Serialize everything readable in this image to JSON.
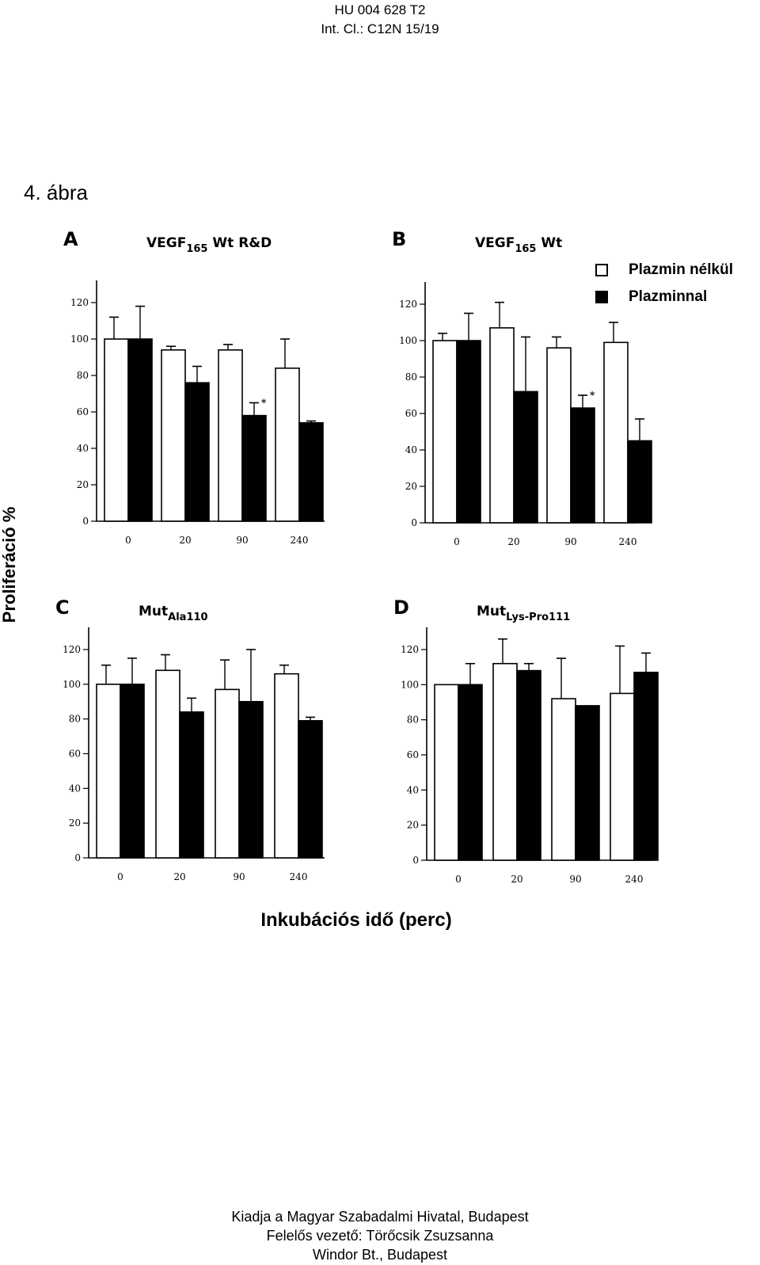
{
  "header": {
    "line1": "HU 004 628 T2",
    "line2": "Int. Cl.: C12N 15/19"
  },
  "figure_title": "4. ábra",
  "y_axis_label": "Proliferáció %",
  "x_axis_label": "Inkubációs idő (perc)",
  "legend": [
    {
      "label": "Plazmin nélkül",
      "color": "#ffffff"
    },
    {
      "label": "Plazminnal",
      "color": "#000000"
    }
  ],
  "footer": {
    "line1": "Kiadja a Magyar Szabadalmi Hivatal, Budapest",
    "line2": "Felelős vezető: Törőcsik Zsuzsanna",
    "line3": "Windor Bt., Budapest"
  },
  "chart_data": [
    {
      "type": "bar",
      "panel": "A",
      "title": "VEGF",
      "title_sub": "165",
      "title_rest": "Wt R&D",
      "categories": [
        "0",
        "20",
        "90",
        "240"
      ],
      "ylim": [
        0,
        120
      ],
      "yticks": [
        0,
        20,
        40,
        60,
        80,
        100,
        120
      ],
      "series": [
        {
          "name": "Plazmin nélkül",
          "values": [
            100,
            94,
            94,
            84
          ],
          "errors": [
            12,
            2,
            3,
            16
          ]
        },
        {
          "name": "Plazminnal",
          "values": [
            100,
            76,
            58,
            54
          ],
          "errors": [
            18,
            9,
            7,
            1
          ]
        }
      ],
      "significant": [
        false,
        false,
        true,
        false
      ]
    },
    {
      "type": "bar",
      "panel": "B",
      "title": "VEGF",
      "title_sub": "165",
      "title_rest": "Wt",
      "categories": [
        "0",
        "20",
        "90",
        "240"
      ],
      "ylim": [
        0,
        120
      ],
      "yticks": [
        0,
        20,
        40,
        60,
        80,
        100,
        120
      ],
      "series": [
        {
          "name": "Plazmin nélkül",
          "values": [
            100,
            107,
            96,
            99
          ],
          "errors": [
            4,
            14,
            6,
            11
          ]
        },
        {
          "name": "Plazminnal",
          "values": [
            100,
            72,
            63,
            45
          ],
          "errors": [
            15,
            30,
            7,
            12
          ]
        }
      ],
      "significant": [
        false,
        false,
        true,
        false
      ]
    },
    {
      "type": "bar",
      "panel": "C",
      "title": "Mut",
      "title_sub": "Ala110",
      "title_rest": "",
      "categories": [
        "0",
        "20",
        "90",
        "240"
      ],
      "ylim": [
        0,
        120
      ],
      "yticks": [
        0,
        20,
        40,
        60,
        80,
        100,
        120
      ],
      "series": [
        {
          "name": "Plazmin nélkül",
          "values": [
            100,
            108,
            97,
            106
          ],
          "errors": [
            11,
            9,
            17,
            5
          ]
        },
        {
          "name": "Plazminnal",
          "values": [
            100,
            84,
            90,
            79
          ],
          "errors": [
            15,
            8,
            30,
            2
          ]
        }
      ],
      "significant": [
        false,
        false,
        false,
        false
      ]
    },
    {
      "type": "bar",
      "panel": "D",
      "title": "Mut",
      "title_sub": "Lys-Pro111",
      "title_rest": "",
      "categories": [
        "0",
        "20",
        "90",
        "240"
      ],
      "ylim": [
        0,
        120
      ],
      "yticks": [
        0,
        20,
        40,
        60,
        80,
        100,
        120
      ],
      "series": [
        {
          "name": "Plazmin nélkül",
          "values": [
            100,
            112,
            92,
            95
          ],
          "errors": [
            0,
            14,
            23,
            27
          ]
        },
        {
          "name": "Plazminnal",
          "values": [
            100,
            108,
            88,
            107
          ],
          "errors": [
            12,
            4,
            0,
            11
          ]
        }
      ],
      "significant": [
        false,
        false,
        false,
        false
      ]
    }
  ]
}
